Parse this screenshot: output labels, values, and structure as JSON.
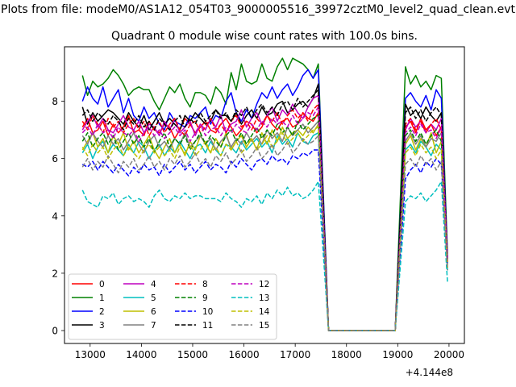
{
  "figure": {
    "suptitle": "Plots from file: modeM0/AS1A12_054T03_9000005516_39972cztM0_level2_quad_clean.evt"
  },
  "chart_data": {
    "type": "line",
    "title": "Quadrant 0 module wise count rates with 100.0s bins.",
    "xlabel": "",
    "ylabel": "",
    "x_offset_label": "+4.144e8",
    "xlim": [
      12500,
      20300
    ],
    "ylim": [
      -0.45,
      9.9
    ],
    "xticks": [
      13000,
      14000,
      15000,
      16000,
      17000,
      18000,
      19000,
      20000
    ],
    "yticks": [
      0,
      2,
      4,
      6,
      8
    ],
    "grid": false,
    "legend_placement": "lower-left",
    "legend_columns": 4,
    "x": [
      12850,
      12950,
      13050,
      13150,
      13250,
      13350,
      13450,
      13550,
      13650,
      13750,
      13850,
      13950,
      14050,
      14150,
      14250,
      14350,
      14450,
      14550,
      14650,
      14750,
      14850,
      14950,
      15050,
      15150,
      15250,
      15350,
      15450,
      15550,
      15650,
      15750,
      15850,
      15950,
      16050,
      16150,
      16250,
      16350,
      16450,
      16550,
      16650,
      16750,
      16850,
      16950,
      17050,
      17150,
      17250,
      17350,
      17450,
      17650,
      18950,
      19150,
      19250,
      19350,
      19450,
      19550,
      19650,
      19750,
      19850,
      19970
    ],
    "series": [
      {
        "name": "0",
        "color": "#ff0000",
        "dash": "solid",
        "values": [
          7.1,
          7.4,
          6.9,
          7.0,
          7.3,
          6.8,
          7.2,
          6.9,
          7.1,
          7.5,
          6.9,
          7.0,
          6.8,
          7.3,
          7.0,
          6.9,
          7.2,
          7.1,
          6.7,
          7.0,
          7.4,
          7.2,
          6.9,
          7.1,
          7.3,
          7.0,
          6.9,
          7.2,
          7.4,
          7.1,
          6.8,
          7.0,
          7.3,
          7.2,
          6.9,
          7.1,
          7.5,
          7.2,
          7.0,
          7.3,
          7.4,
          7.1,
          7.2,
          7.6,
          7.4,
          7.3,
          7.6,
          0,
          0,
          7.1,
          7.3,
          6.9,
          7.4,
          7.0,
          7.2,
          6.8,
          7.1,
          2.4
        ]
      },
      {
        "name": "1",
        "color": "#008000",
        "dash": "solid",
        "values": [
          8.9,
          8.2,
          8.7,
          8.5,
          8.6,
          8.8,
          9.1,
          8.9,
          8.6,
          8.2,
          8.4,
          8.5,
          8.4,
          8.4,
          8.0,
          7.7,
          8.1,
          8.5,
          8.3,
          8.6,
          8.1,
          7.8,
          8.3,
          8.3,
          8.2,
          7.9,
          8.5,
          8.3,
          7.9,
          9.0,
          8.4,
          9.3,
          8.7,
          8.6,
          8.7,
          9.3,
          8.8,
          8.7,
          9.2,
          9.5,
          9.1,
          9.5,
          9.4,
          9.3,
          9.1,
          8.8,
          9.3,
          0,
          0,
          9.2,
          8.6,
          8.9,
          8.5,
          8.7,
          8.4,
          8.9,
          8.8,
          2.7
        ]
      },
      {
        "name": "2",
        "color": "#0000ff",
        "dash": "solid",
        "values": [
          8.0,
          8.5,
          8.1,
          7.9,
          8.5,
          7.8,
          8.1,
          8.4,
          7.6,
          8.1,
          7.5,
          7.3,
          7.8,
          7.4,
          7.6,
          7.2,
          7.0,
          7.6,
          7.3,
          7.2,
          7.1,
          7.5,
          7.4,
          7.6,
          7.8,
          7.2,
          7.5,
          7.4,
          8.0,
          8.3,
          7.6,
          7.3,
          7.7,
          7.4,
          7.9,
          8.3,
          8.1,
          8.5,
          8.1,
          8.4,
          8.6,
          8.2,
          8.5,
          8.9,
          9.1,
          8.8,
          9.1,
          0,
          0,
          8.1,
          8.3,
          8.0,
          7.8,
          8.2,
          7.7,
          8.4,
          8.1,
          2.6
        ]
      },
      {
        "name": "3",
        "color": "#000000",
        "dash": "solid",
        "values": [
          7.8,
          7.2,
          7.6,
          7.3,
          7.5,
          7.7,
          7.6,
          7.4,
          7.2,
          7.6,
          7.3,
          7.1,
          7.5,
          7.0,
          7.3,
          7.6,
          7.2,
          7.4,
          7.2,
          7.0,
          7.5,
          7.3,
          7.6,
          7.4,
          7.2,
          7.3,
          7.7,
          7.5,
          7.5,
          7.3,
          7.6,
          7.2,
          7.5,
          7.7,
          7.4,
          7.8,
          7.5,
          7.6,
          7.9,
          8.0,
          7.6,
          7.7,
          7.9,
          8.0,
          7.8,
          8.1,
          8.6,
          0,
          0,
          7.9,
          7.5,
          7.7,
          7.4,
          7.8,
          7.5,
          7.3,
          7.6,
          2.5
        ]
      },
      {
        "name": "4",
        "color": "#bf00bf",
        "dash": "solid",
        "values": [
          7.0,
          7.3,
          7.5,
          7.1,
          7.4,
          7.0,
          6.9,
          7.2,
          7.5,
          7.1,
          7.0,
          7.3,
          6.9,
          7.2,
          7.1,
          6.8,
          7.3,
          7.0,
          7.4,
          6.9,
          7.1,
          7.3,
          6.8,
          7.2,
          7.0,
          7.4,
          7.1,
          7.5,
          6.9,
          7.2,
          7.3,
          7.7,
          7.1,
          7.4,
          7.6,
          7.2,
          7.5,
          7.8,
          7.3,
          7.7,
          7.5,
          7.9,
          7.6,
          7.4,
          7.8,
          8.1,
          8.2,
          0,
          0,
          7.0,
          7.4,
          7.1,
          7.3,
          6.9,
          7.2,
          7.0,
          7.4,
          2.5
        ]
      },
      {
        "name": "5",
        "color": "#00bfbf",
        "dash": "solid",
        "values": [
          6.2,
          6.5,
          6.0,
          6.4,
          6.6,
          6.2,
          6.5,
          6.3,
          6.1,
          6.5,
          6.2,
          6.6,
          6.4,
          6.0,
          6.3,
          6.5,
          6.1,
          6.4,
          6.2,
          6.6,
          6.3,
          6.0,
          6.4,
          6.5,
          6.2,
          6.6,
          6.3,
          6.1,
          6.5,
          6.4,
          6.2,
          6.6,
          6.3,
          6.5,
          6.7,
          6.4,
          6.6,
          6.2,
          6.8,
          6.5,
          6.7,
          6.4,
          6.9,
          6.6,
          6.5,
          6.8,
          6.9,
          0,
          0,
          6.3,
          6.5,
          6.2,
          6.6,
          6.4,
          6.1,
          6.5,
          6.3,
          2.1
        ]
      },
      {
        "name": "6",
        "color": "#bfbf00",
        "dash": "solid",
        "values": [
          6.3,
          6.6,
          6.9,
          6.4,
          6.7,
          6.2,
          6.8,
          6.5,
          6.9,
          6.3,
          6.6,
          6.2,
          6.5,
          6.8,
          6.3,
          6.0,
          6.4,
          6.7,
          6.2,
          6.5,
          6.1,
          6.6,
          6.3,
          6.8,
          6.5,
          6.2,
          6.7,
          6.4,
          6.9,
          6.3,
          6.6,
          6.8,
          6.4,
          6.7,
          6.3,
          6.9,
          6.5,
          7.0,
          6.6,
          7.1,
          6.7,
          6.9,
          7.0,
          6.8,
          7.1,
          6.9,
          7.2,
          0,
          0,
          6.5,
          6.8,
          6.3,
          6.7,
          6.4,
          6.9,
          6.2,
          6.6,
          2.2
        ]
      },
      {
        "name": "7",
        "color": "#808080",
        "dash": "solid",
        "values": [
          6.8,
          6.5,
          6.9,
          6.6,
          6.4,
          6.8,
          6.5,
          6.7,
          6.3,
          6.6,
          6.9,
          6.5,
          6.2,
          6.6,
          6.8,
          6.4,
          6.6,
          6.3,
          6.7,
          6.5,
          6.9,
          6.4,
          6.6,
          6.8,
          6.5,
          6.7,
          6.3,
          6.6,
          6.8,
          6.4,
          6.7,
          6.5,
          6.9,
          6.6,
          6.8,
          6.5,
          7.0,
          6.7,
          6.9,
          6.6,
          7.1,
          6.8,
          7.0,
          7.2,
          6.9,
          7.1,
          7.3,
          0,
          0,
          6.6,
          6.9,
          6.5,
          6.8,
          6.4,
          6.7,
          6.6,
          6.9,
          2.3
        ]
      },
      {
        "name": "8",
        "color": "#ff0000",
        "dash": "dashed",
        "values": [
          7.3,
          7.0,
          7.5,
          7.2,
          6.9,
          7.4,
          7.1,
          7.3,
          6.9,
          7.2,
          7.4,
          7.0,
          7.3,
          6.8,
          7.1,
          7.3,
          6.9,
          7.2,
          7.4,
          7.0,
          6.8,
          7.2,
          7.3,
          6.9,
          7.1,
          7.4,
          7.0,
          7.2,
          6.9,
          7.3,
          7.5,
          7.1,
          7.3,
          7.0,
          7.4,
          7.2,
          7.5,
          7.3,
          7.6,
          7.2,
          7.5,
          7.7,
          7.4,
          7.6,
          7.3,
          7.7,
          7.9,
          0,
          0,
          7.2,
          7.4,
          7.0,
          7.3,
          6.9,
          7.2,
          7.4,
          7.0,
          2.4
        ]
      },
      {
        "name": "9",
        "color": "#008000",
        "dash": "dashed",
        "values": [
          6.6,
          6.9,
          6.4,
          6.7,
          6.9,
          6.5,
          6.8,
          6.3,
          6.6,
          6.9,
          6.5,
          6.8,
          6.4,
          6.7,
          6.2,
          6.6,
          6.9,
          6.4,
          6.7,
          6.5,
          6.8,
          6.3,
          6.6,
          6.9,
          6.5,
          6.8,
          6.6,
          6.4,
          6.8,
          7.0,
          6.6,
          6.9,
          6.5,
          6.8,
          7.1,
          6.7,
          7.0,
          6.8,
          7.2,
          6.9,
          7.1,
          6.8,
          7.3,
          7.0,
          7.2,
          7.4,
          7.5,
          0,
          0,
          6.8,
          7.0,
          6.6,
          6.9,
          6.5,
          6.8,
          7.0,
          6.6,
          2.3
        ]
      },
      {
        "name": "10",
        "color": "#0000ff",
        "dash": "dashed",
        "values": [
          5.8,
          5.7,
          5.9,
          5.6,
          5.9,
          5.7,
          5.5,
          5.8,
          5.6,
          5.4,
          5.7,
          5.5,
          5.8,
          5.6,
          5.7,
          5.4,
          5.8,
          5.5,
          5.7,
          5.9,
          5.6,
          5.8,
          5.5,
          5.7,
          5.9,
          5.6,
          5.8,
          5.7,
          5.5,
          5.9,
          5.7,
          6.0,
          5.8,
          5.6,
          5.9,
          6.0,
          5.8,
          6.1,
          5.9,
          6.0,
          5.8,
          6.1,
          6.0,
          6.2,
          6.1,
          6.3,
          6.3,
          0,
          0,
          5.3,
          5.6,
          5.8,
          5.5,
          5.9,
          5.7,
          6.0,
          5.8,
          2.2
        ]
      },
      {
        "name": "11",
        "color": "#000000",
        "dash": "dashed",
        "values": [
          7.5,
          7.7,
          7.3,
          7.6,
          7.4,
          7.2,
          7.5,
          7.3,
          7.0,
          7.4,
          7.2,
          7.5,
          7.1,
          7.3,
          7.0,
          7.4,
          7.2,
          7.0,
          7.3,
          7.5,
          7.1,
          7.4,
          7.2,
          7.6,
          7.3,
          7.5,
          7.7,
          7.4,
          7.6,
          7.3,
          7.7,
          7.5,
          7.8,
          7.4,
          7.7,
          7.9,
          7.6,
          7.8,
          7.5,
          7.9,
          8.0,
          7.7,
          8.1,
          7.8,
          8.0,
          8.2,
          8.4,
          0,
          0,
          7.6,
          7.8,
          7.4,
          7.7,
          7.3,
          7.6,
          7.8,
          7.5,
          2.5
        ]
      },
      {
        "name": "12",
        "color": "#bf00bf",
        "dash": "dashed",
        "values": [
          6.9,
          7.1,
          6.8,
          7.2,
          6.9,
          7.0,
          6.7,
          7.1,
          6.9,
          6.8,
          7.0,
          6.6,
          6.9,
          7.1,
          6.8,
          7.0,
          6.7,
          6.9,
          7.1,
          6.8,
          7.0,
          6.6,
          6.9,
          7.2,
          6.8,
          7.0,
          7.1,
          6.8,
          7.1,
          6.9,
          7.2,
          7.0,
          6.9,
          7.2,
          7.0,
          7.3,
          7.1,
          7.4,
          7.2,
          7.3,
          7.1,
          7.5,
          7.2,
          7.4,
          7.6,
          7.5,
          7.8,
          0,
          0,
          6.9,
          7.1,
          6.8,
          7.2,
          6.9,
          7.0,
          6.7,
          7.1,
          2.4
        ]
      },
      {
        "name": "13",
        "color": "#00bfbf",
        "dash": "dashed",
        "values": [
          4.9,
          4.5,
          4.4,
          4.3,
          4.7,
          4.6,
          4.8,
          4.4,
          4.6,
          4.7,
          4.5,
          4.6,
          4.5,
          4.3,
          4.7,
          4.9,
          4.6,
          4.5,
          4.7,
          4.6,
          4.8,
          4.6,
          4.7,
          4.7,
          4.6,
          4.6,
          4.6,
          4.5,
          4.8,
          4.6,
          4.5,
          4.3,
          4.6,
          4.5,
          4.7,
          4.4,
          4.8,
          4.6,
          4.9,
          4.7,
          5.0,
          4.7,
          4.8,
          4.6,
          4.7,
          4.9,
          5.2,
          0,
          0,
          4.5,
          4.7,
          4.6,
          4.8,
          4.5,
          4.7,
          4.9,
          5.2,
          1.7
        ]
      },
      {
        "name": "14",
        "color": "#bfbf00",
        "dash": "dashed",
        "values": [
          6.4,
          6.1,
          6.5,
          6.2,
          6.4,
          6.0,
          6.3,
          6.5,
          6.1,
          6.4,
          6.2,
          6.0,
          6.3,
          6.5,
          6.2,
          6.4,
          6.1,
          6.3,
          6.0,
          6.4,
          6.2,
          6.5,
          6.1,
          6.3,
          6.6,
          6.2,
          6.4,
          6.1,
          6.5,
          6.3,
          6.6,
          6.2,
          6.4,
          6.7,
          6.3,
          6.5,
          6.8,
          6.4,
          6.6,
          6.9,
          6.5,
          6.7,
          6.9,
          6.6,
          6.8,
          7.0,
          7.1,
          0,
          0,
          6.2,
          6.4,
          6.1,
          6.5,
          6.2,
          6.4,
          6.0,
          6.3,
          2.2
        ]
      },
      {
        "name": "15",
        "color": "#808080",
        "dash": "dashed",
        "values": [
          5.7,
          6.0,
          5.6,
          5.9,
          5.7,
          6.1,
          5.8,
          5.5,
          5.9,
          5.7,
          6.0,
          5.6,
          5.8,
          6.1,
          5.7,
          5.9,
          5.6,
          6.0,
          5.8,
          6.1,
          5.7,
          5.9,
          6.2,
          5.8,
          6.0,
          5.7,
          6.1,
          5.9,
          6.2,
          5.8,
          6.0,
          6.3,
          5.9,
          6.1,
          6.4,
          6.0,
          6.2,
          6.5,
          6.1,
          6.3,
          6.6,
          6.2,
          6.4,
          6.7,
          6.5,
          6.6,
          6.8,
          0,
          0,
          5.8,
          6.0,
          5.7,
          6.1,
          5.8,
          6.0,
          5.6,
          5.9,
          2.1
        ]
      }
    ]
  }
}
